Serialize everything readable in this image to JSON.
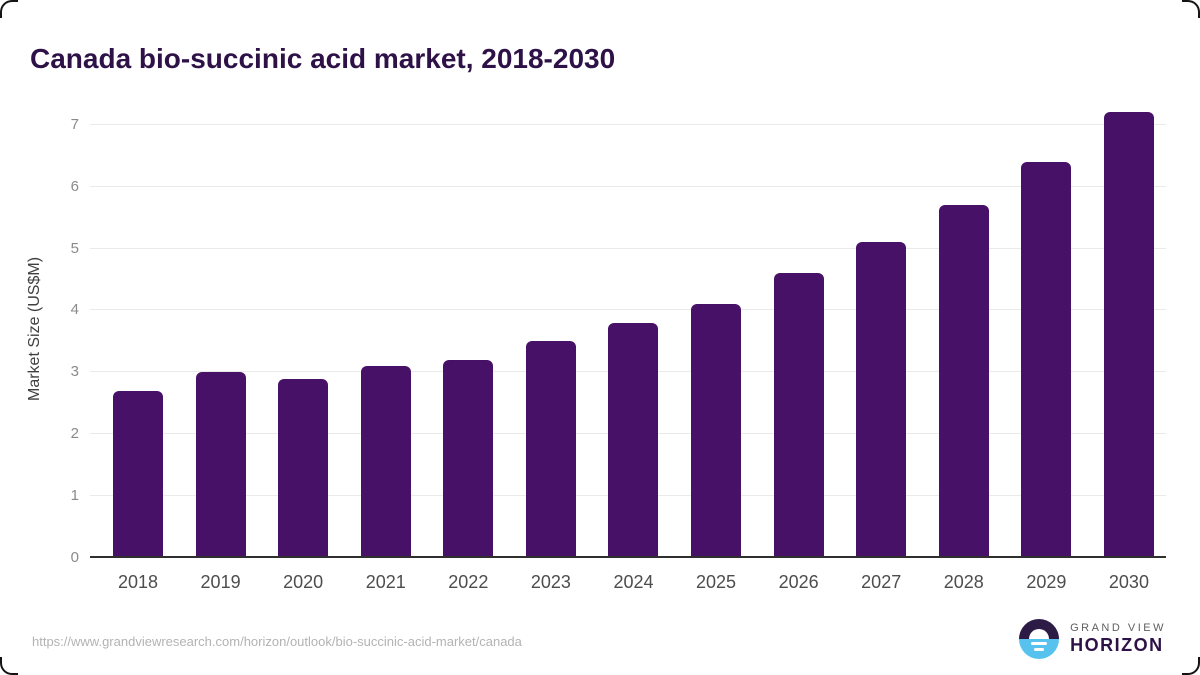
{
  "card": {
    "title": "Canada bio-succinic acid market, 2018-2030"
  },
  "chart_data": {
    "type": "bar",
    "title": "Canada bio-succinic acid market, 2018-2030",
    "categories": [
      "2018",
      "2019",
      "2020",
      "2021",
      "2022",
      "2023",
      "2024",
      "2025",
      "2026",
      "2027",
      "2028",
      "2029",
      "2030"
    ],
    "values": [
      2.7,
      3.0,
      2.9,
      3.1,
      3.2,
      3.5,
      3.8,
      4.1,
      4.6,
      5.1,
      5.7,
      6.4,
      7.2
    ],
    "xlabel": "",
    "ylabel": "Market Size (US$M)",
    "ylim": [
      0,
      7.4
    ],
    "yticks": [
      0,
      1,
      2,
      3,
      4,
      5,
      6,
      7
    ],
    "grid": true,
    "legend": false,
    "bar_color": "#471168"
  },
  "footer": {
    "source_url": "https://www.grandviewresearch.com/horizon/outlook/bio-succinic-acid-market/canada",
    "logo": {
      "line1": "GRAND VIEW",
      "line2": "HORIZON"
    }
  },
  "colors": {
    "bar": "#471168",
    "title_text": "#2e1247",
    "gridline": "#eaeaea",
    "axis_line": "#2f2f2f",
    "y_tick_text": "#8a8a8a",
    "x_tick_text": "#4d4d4d",
    "url_text": "#b3b3b3",
    "logo_purple": "#2b1b45",
    "logo_blue": "#58c2ee"
  }
}
